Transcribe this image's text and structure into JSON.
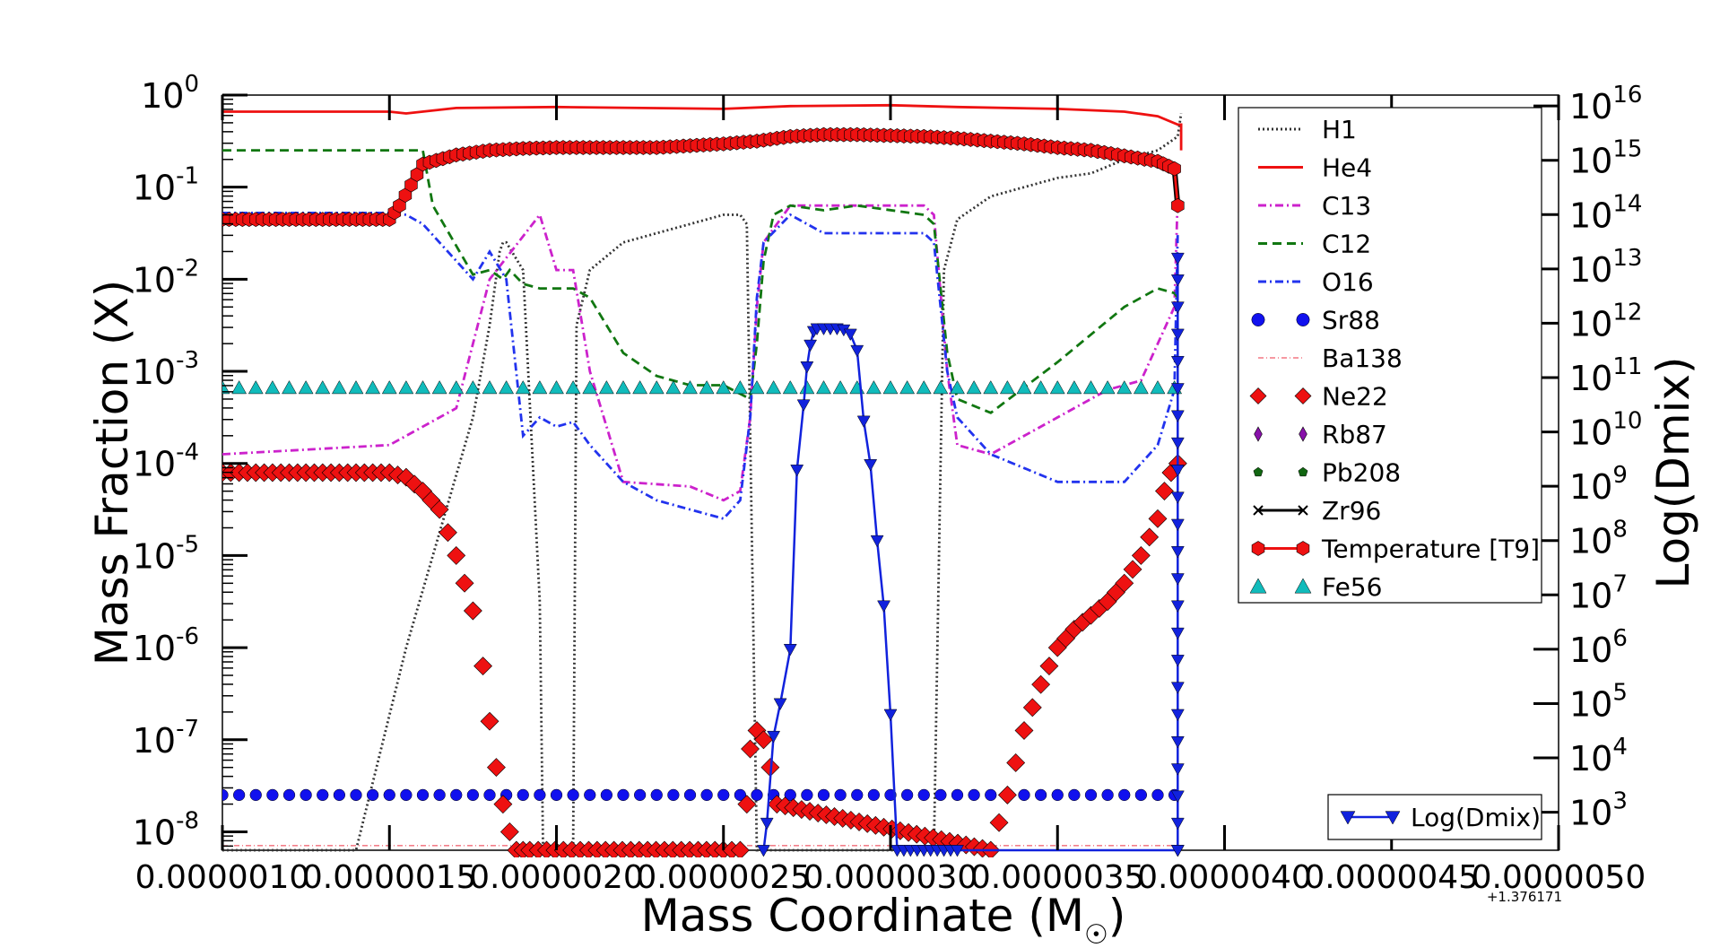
{
  "chart_data": {
    "type": "line",
    "xlabel": "Mass Coordinate (M",
    "xlabel_symbol": "☉",
    "xlabel_close": ")",
    "ylabel_left": "Mass Fraction (X)",
    "ylabel_right": "Log(Dmix)",
    "x_offset_label": "+1.376171",
    "x_ticks": [
      "0.0000010",
      "0.0000015",
      "0.0000020",
      "0.0000025",
      "0.0000030",
      "0.0000035",
      "0.0000040",
      "0.0000045",
      "0.0000050"
    ],
    "x_tick_values": [
      1.0,
      1.5,
      2.0,
      2.5,
      3.0,
      3.5,
      4.0,
      4.5,
      5.0
    ],
    "x_unit_note": "x values are in units of 1e-6 added to offset",
    "xlim": [
      1.0,
      5.0
    ],
    "y_left_scale": "log",
    "y_left_ticks": [
      {
        "base": "10",
        "exp": "0"
      },
      {
        "base": "10",
        "exp": "-1"
      },
      {
        "base": "10",
        "exp": "-2"
      },
      {
        "base": "10",
        "exp": "-3"
      },
      {
        "base": "10",
        "exp": "-4"
      },
      {
        "base": "10",
        "exp": "-5"
      },
      {
        "base": "10",
        "exp": "-6"
      },
      {
        "base": "10",
        "exp": "-7"
      },
      {
        "base": "10",
        "exp": "-8"
      }
    ],
    "y_left_exps": [
      0,
      -1,
      -2,
      -3,
      -4,
      -5,
      -6,
      -7,
      -8
    ],
    "ylim_left_log": [
      -8.2,
      0
    ],
    "y_right_scale": "log",
    "y_right_ticks": [
      {
        "base": "10",
        "exp": "3"
      },
      {
        "base": "10",
        "exp": "4"
      },
      {
        "base": "10",
        "exp": "5"
      },
      {
        "base": "10",
        "exp": "6"
      },
      {
        "base": "10",
        "exp": "7"
      },
      {
        "base": "10",
        "exp": "8"
      },
      {
        "base": "10",
        "exp": "9"
      },
      {
        "base": "10",
        "exp": "10"
      },
      {
        "base": "10",
        "exp": "11"
      },
      {
        "base": "10",
        "exp": "12"
      },
      {
        "base": "10",
        "exp": "13"
      },
      {
        "base": "10",
        "exp": "14"
      },
      {
        "base": "10",
        "exp": "15"
      },
      {
        "base": "10",
        "exp": "16"
      }
    ],
    "y_right_exps": [
      3,
      4,
      5,
      6,
      7,
      8,
      9,
      10,
      11,
      12,
      13,
      14,
      15,
      16
    ],
    "ylim_right_log": [
      2.3,
      16.2
    ],
    "grid": false,
    "legend_main_placement": "top-right",
    "legend_dmix_placement": "bottom-right",
    "series": [
      {
        "name": "H1",
        "color": "#333333",
        "style": "dotted",
        "marker": "none",
        "x": [
          1.0,
          1.4,
          1.55,
          1.75,
          1.8,
          1.83,
          1.84,
          1.85,
          1.9,
          1.95,
          1.96,
          1.97,
          2.05,
          2.06,
          2.1,
          2.2,
          2.3,
          2.4,
          2.5,
          2.55,
          2.57,
          2.6,
          3.13,
          3.16,
          3.2,
          3.3,
          3.4,
          3.5,
          3.6,
          3.7,
          3.8,
          3.86,
          3.87
        ],
        "logy": [
          -8.2,
          -8.2,
          -6.0,
          -3.5,
          -2.5,
          -1.7,
          -1.6,
          -1.6,
          -1.9,
          -5.5,
          -8.2,
          -8.2,
          -8.2,
          -2.5,
          -1.9,
          -1.6,
          -1.5,
          -1.4,
          -1.3,
          -1.3,
          -1.4,
          -8.2,
          -8.2,
          -1.9,
          -1.35,
          -1.1,
          -1.0,
          -0.9,
          -0.85,
          -0.7,
          -0.6,
          -0.45,
          -0.2
        ]
      },
      {
        "name": "He4",
        "color": "#ee1111",
        "style": "solid",
        "marker": "none",
        "x": [
          1.0,
          1.5,
          1.55,
          1.7,
          2.0,
          2.5,
          2.7,
          3.0,
          3.2,
          3.5,
          3.7,
          3.8,
          3.86,
          3.87,
          3.87
        ],
        "logy": [
          -0.18,
          -0.18,
          -0.2,
          -0.14,
          -0.13,
          -0.15,
          -0.12,
          -0.11,
          -0.13,
          -0.15,
          -0.18,
          -0.23,
          -0.32,
          -0.32,
          -0.6
        ]
      },
      {
        "name": "C13",
        "color": "#cc22cc",
        "style": "dashdot",
        "marker": "none",
        "x": [
          1.0,
          1.5,
          1.7,
          1.8,
          1.95,
          2.0,
          2.05,
          2.1,
          2.2,
          2.4,
          2.5,
          2.55,
          2.58,
          2.6,
          2.62,
          2.7,
          2.75,
          2.8,
          2.9,
          3.1,
          3.13,
          3.17,
          3.2,
          3.3,
          3.5,
          3.65,
          3.75,
          3.85,
          3.86
        ],
        "logy": [
          -3.9,
          -3.8,
          -3.4,
          -2.0,
          -1.3,
          -1.9,
          -1.9,
          -3.0,
          -4.2,
          -4.25,
          -4.4,
          -4.3,
          -3.5,
          -2.3,
          -1.6,
          -1.2,
          -1.2,
          -1.2,
          -1.2,
          -1.2,
          -1.3,
          -3.0,
          -3.8,
          -3.9,
          -3.5,
          -3.2,
          -3.1,
          -2.3,
          -1.1
        ]
      },
      {
        "name": "C12",
        "color": "#117711",
        "style": "dashed",
        "marker": "none",
        "x": [
          1.0,
          1.3,
          1.5,
          1.6,
          1.63,
          1.75,
          1.8,
          1.84,
          1.86,
          1.9,
          1.95,
          2.0,
          2.05,
          2.1,
          2.2,
          2.3,
          2.4,
          2.5,
          2.58,
          2.6,
          2.62,
          2.65,
          2.7,
          2.8,
          2.9,
          3.1,
          3.13,
          3.17,
          3.2,
          3.3,
          3.5,
          3.7,
          3.8,
          3.85,
          3.86
        ],
        "logy": [
          -0.6,
          -0.6,
          -0.6,
          -0.6,
          -1.2,
          -1.95,
          -1.9,
          -2.0,
          -1.9,
          -2.05,
          -2.1,
          -2.1,
          -2.1,
          -2.2,
          -2.8,
          -3.05,
          -3.15,
          -3.15,
          -3.3,
          -2.7,
          -1.8,
          -1.3,
          -1.2,
          -1.25,
          -1.2,
          -1.3,
          -1.4,
          -2.8,
          -3.3,
          -3.45,
          -2.9,
          -2.3,
          -2.1,
          -2.15,
          -2.2
        ]
      },
      {
        "name": "O16",
        "color": "#2233ee",
        "style": "dashdot",
        "marker": "none",
        "x": [
          1.0,
          1.5,
          1.55,
          1.6,
          1.65,
          1.75,
          1.8,
          1.85,
          1.9,
          1.95,
          2.0,
          2.05,
          2.1,
          2.2,
          2.3,
          2.4,
          2.5,
          2.55,
          2.58,
          2.6,
          2.62,
          2.7,
          2.8,
          2.9,
          3.1,
          3.13,
          3.17,
          3.2,
          3.3,
          3.5,
          3.7,
          3.8,
          3.85,
          3.86
        ],
        "logy": [
          -1.28,
          -1.28,
          -1.3,
          -1.4,
          -1.6,
          -2.0,
          -1.7,
          -2.0,
          -3.7,
          -3.5,
          -3.6,
          -3.55,
          -3.8,
          -4.2,
          -4.4,
          -4.5,
          -4.6,
          -4.4,
          -3.5,
          -2.2,
          -1.6,
          -1.3,
          -1.5,
          -1.5,
          -1.5,
          -1.6,
          -3.0,
          -3.5,
          -3.9,
          -4.2,
          -4.2,
          -3.8,
          -3.2,
          -1.5
        ]
      },
      {
        "name": "Sr88",
        "color": "#1111ee",
        "style": "marker",
        "marker": "circle",
        "x_from": 1.0,
        "x_to": 3.86,
        "x_step": 0.05,
        "logy_const": -7.6
      },
      {
        "name": "Ba138",
        "color": "#ee3344",
        "style": "dashdot-thin",
        "marker": "none",
        "x": [
          1.0,
          3.86
        ],
        "logy": [
          -8.15,
          -8.15
        ]
      },
      {
        "name": "Ne22",
        "color": "#ee1111",
        "style": "marker",
        "marker": "diamond",
        "x": [
          1.0,
          1.05,
          1.1,
          1.15,
          1.2,
          1.25,
          1.3,
          1.35,
          1.4,
          1.45,
          1.5,
          1.55,
          1.6,
          1.65,
          1.7,
          1.75,
          1.78,
          1.8,
          1.82,
          1.84,
          1.86,
          1.88,
          1.9,
          1.92,
          2.55,
          2.57,
          2.58,
          2.6,
          2.62,
          2.64,
          2.66,
          3.3,
          3.35,
          3.4,
          3.45,
          3.5,
          3.55,
          3.6,
          3.65,
          3.7,
          3.75,
          3.8,
          3.82,
          3.84,
          3.86
        ],
        "logy": [
          -4.1,
          -4.1,
          -4.1,
          -4.1,
          -4.1,
          -4.1,
          -4.1,
          -4.1,
          -4.1,
          -4.1,
          -4.1,
          -4.15,
          -4.3,
          -4.5,
          -5.0,
          -5.6,
          -6.2,
          -6.8,
          -7.3,
          -7.7,
          -8.0,
          -8.2,
          -8.2,
          -8.2,
          -8.2,
          -7.7,
          -7.1,
          -6.9,
          -7.0,
          -7.3,
          -7.7,
          -8.2,
          -7.6,
          -6.9,
          -6.4,
          -6.0,
          -5.8,
          -5.65,
          -5.5,
          -5.3,
          -5.0,
          -4.6,
          -4.3,
          -4.1,
          -4.0
        ]
      },
      {
        "name": "Rb87",
        "color": "#8811aa",
        "style": "marker",
        "marker": "small-diamond",
        "x": [],
        "logy": []
      },
      {
        "name": "Pb208",
        "color": "#116611",
        "style": "marker",
        "marker": "pentagon",
        "x": [],
        "logy": []
      },
      {
        "name": "Zr96",
        "color": "#000000",
        "style": "solid",
        "marker": "x",
        "x": [
          1.0,
          1.3,
          1.5,
          1.53,
          1.6,
          1.7,
          1.8,
          1.9,
          2.0,
          2.1,
          2.2,
          2.3,
          2.4,
          2.5,
          2.6,
          2.7,
          2.8,
          2.9,
          3.0,
          3.1,
          3.2,
          3.3,
          3.4,
          3.5,
          3.6,
          3.7,
          3.8,
          3.85,
          3.86
        ],
        "logy": [
          -1.35,
          -1.35,
          -1.35,
          -1.2,
          -0.75,
          -0.65,
          -0.6,
          -0.58,
          -0.57,
          -0.57,
          -0.57,
          -0.57,
          -0.55,
          -0.53,
          -0.5,
          -0.45,
          -0.43,
          -0.43,
          -0.44,
          -0.45,
          -0.47,
          -0.5,
          -0.53,
          -0.57,
          -0.6,
          -0.66,
          -0.72,
          -0.8,
          -1.2
        ]
      },
      {
        "name": "Temperature [T9]",
        "color": "#ee1111",
        "style": "line-marker",
        "marker": "hexagon",
        "x": [
          1.0,
          1.3,
          1.5,
          1.53,
          1.6,
          1.7,
          1.8,
          1.9,
          2.0,
          2.1,
          2.2,
          2.3,
          2.4,
          2.5,
          2.6,
          2.7,
          2.8,
          2.9,
          3.0,
          3.1,
          3.2,
          3.3,
          3.4,
          3.5,
          3.6,
          3.7,
          3.8,
          3.85,
          3.86
        ],
        "logy": [
          -1.35,
          -1.35,
          -1.35,
          -1.2,
          -0.75,
          -0.65,
          -0.6,
          -0.58,
          -0.57,
          -0.57,
          -0.57,
          -0.57,
          -0.55,
          -0.53,
          -0.5,
          -0.45,
          -0.43,
          -0.43,
          -0.44,
          -0.45,
          -0.47,
          -0.5,
          -0.53,
          -0.57,
          -0.6,
          -0.66,
          -0.72,
          -0.8,
          -1.2
        ]
      },
      {
        "name": "Fe56",
        "color": "#11bbbb",
        "style": "marker",
        "marker": "triangle-up",
        "x_from": 1.0,
        "x_to": 3.86,
        "x_step": 0.05,
        "logy_const": -3.18
      }
    ],
    "dmix_series": {
      "name": "Log(Dmix)",
      "color": "#1122dd",
      "marker": "triangle-down",
      "x": [
        2.62,
        2.63,
        2.65,
        2.67,
        2.7,
        2.72,
        2.74,
        2.75,
        2.76,
        2.77,
        2.78,
        2.8,
        2.82,
        2.84,
        2.86,
        2.88,
        2.9,
        2.92,
        2.94,
        2.96,
        2.98,
        3.0,
        3.02,
        3.04,
        3.06,
        3.08,
        3.1,
        3.12,
        3.14,
        3.16,
        3.18,
        3.2,
        3.86,
        3.86
      ],
      "logy_right": [
        2.3,
        2.8,
        4.4,
        5.0,
        6.0,
        9.3,
        10.5,
        11.2,
        11.6,
        11.85,
        11.9,
        11.9,
        11.9,
        11.9,
        11.88,
        11.8,
        11.5,
        10.2,
        9.4,
        8.0,
        6.8,
        4.8,
        2.3,
        2.3,
        2.3,
        2.3,
        2.3,
        2.3,
        2.3,
        2.3,
        2.3,
        2.3,
        2.3,
        13.2
      ]
    }
  }
}
